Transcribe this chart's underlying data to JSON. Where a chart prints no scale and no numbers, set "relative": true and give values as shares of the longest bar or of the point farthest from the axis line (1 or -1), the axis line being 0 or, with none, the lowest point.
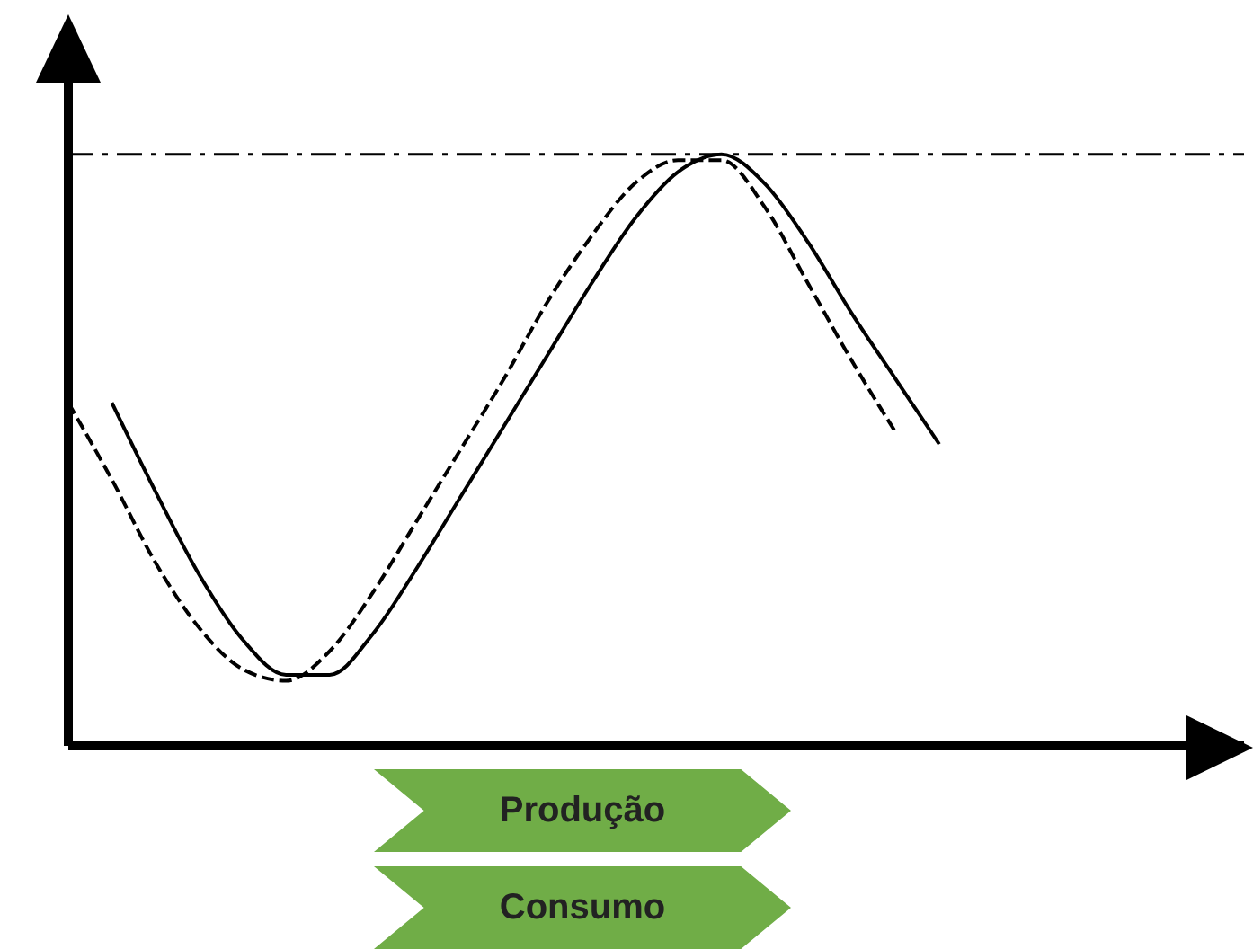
{
  "chart_data": {
    "type": "line",
    "relative": true,
    "categories": [
      null,
      null,
      null,
      null,
      null,
      null,
      null,
      null,
      null,
      null,
      null,
      null,
      null,
      null,
      null,
      null,
      null,
      null,
      null,
      null,
      null
    ],
    "series": [
      {
        "color": "#000000",
        "line_style": "solid",
        "values": [
          null,
          0.58,
          0.43,
          0.29,
          0.18,
          0.12,
          0.12,
          0.19,
          0.3,
          0.42,
          0.54,
          0.66,
          0.78,
          0.89,
          0.97,
          1,
          0.95,
          0.85,
          0.73,
          0.62,
          0.51
        ]
      },
      {
        "color": "#000000",
        "line_style": "dashed",
        "values": [
          0.58,
          0.45,
          0.31,
          0.2,
          0.13,
          0.11,
          0.16,
          0.26,
          0.38,
          0.5,
          0.62,
          0.75,
          0.86,
          0.95,
          0.99,
          0.99,
          0.91,
          0.78,
          0.65,
          0.53,
          null
        ]
      }
    ],
    "ref_lines": [
      {
        "axis": "y",
        "value": 1,
        "color": "#000000",
        "line_style": "dashdot"
      }
    ],
    "annotations": [
      "Produção",
      "Consumo"
    ],
    "grid": false,
    "legend": false,
    "marker": "none"
  }
}
